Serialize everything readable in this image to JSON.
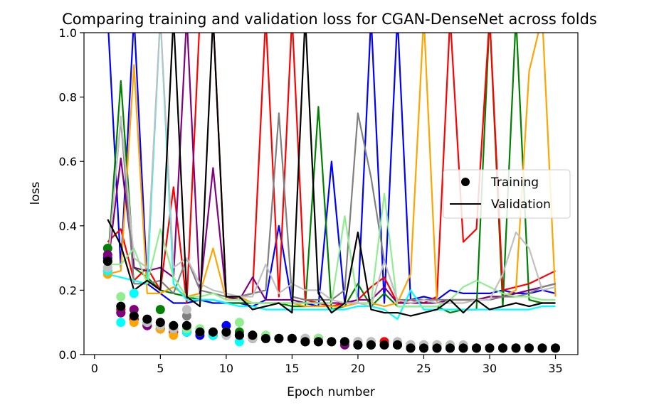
{
  "chart_data": {
    "type": "line",
    "title": "Comparing training and validation loss for CGAN-DenseNet across folds",
    "xlabel": "Epoch number",
    "ylabel": "loss",
    "xlim": [
      -0.8,
      36.7
    ],
    "ylim": [
      0,
      1.0
    ],
    "xticks": [
      0,
      5,
      10,
      15,
      20,
      25,
      30,
      35
    ],
    "yticks": [
      0.0,
      0.2,
      0.4,
      0.6,
      0.8,
      1.0
    ],
    "grid": false,
    "legend": {
      "placement": "center-right",
      "entries": [
        {
          "label": "Training",
          "marker": "point",
          "color": "#000000"
        },
        {
          "label": "Validation",
          "marker": "line",
          "color": "#000000"
        }
      ]
    },
    "x": [
      1,
      2,
      3,
      4,
      5,
      6,
      7,
      8,
      9,
      10,
      11,
      12,
      13,
      14,
      15,
      16,
      17,
      18,
      19,
      20,
      21,
      22,
      23,
      24,
      25,
      26,
      27,
      28,
      29,
      30,
      31,
      32,
      33,
      34,
      35
    ],
    "series": [
      {
        "color": "#0000ff",
        "training": [
          0.3,
          0.13,
          0.11,
          0.09,
          0.08,
          0.07,
          0.07,
          0.06,
          0.06,
          0.09,
          0.06,
          0.05,
          0.05,
          0.05,
          0.05,
          0.04,
          0.04,
          0.04,
          0.04,
          0.03,
          0.03,
          0.03,
          0.03,
          0.03,
          0.02,
          0.02,
          0.02,
          0.02,
          0.02,
          0.02,
          0.02,
          0.02,
          0.02,
          0.02,
          0.02
        ],
        "validation": [
          1.05,
          0.27,
          1.05,
          0.22,
          0.19,
          0.16,
          0.16,
          0.17,
          0.16,
          0.16,
          0.16,
          0.15,
          0.17,
          0.4,
          0.16,
          0.16,
          0.15,
          0.6,
          0.16,
          0.16,
          1.05,
          0.16,
          1.05,
          0.17,
          0.18,
          0.17,
          0.2,
          0.19,
          0.19,
          0.19,
          0.2,
          0.19,
          0.19,
          0.2,
          0.19
        ]
      },
      {
        "color": "#008000",
        "training": [
          0.33,
          0.14,
          0.11,
          0.1,
          0.14,
          0.08,
          0.08,
          0.07,
          0.06,
          0.07,
          0.07,
          0.06,
          0.05,
          0.05,
          0.05,
          0.05,
          0.05,
          0.04,
          0.04,
          0.03,
          0.03,
          0.03,
          0.03,
          0.03,
          0.03,
          0.03,
          0.02,
          0.02,
          0.02,
          0.02,
          0.02,
          0.02,
          0.02,
          0.02,
          0.02
        ],
        "validation": [
          0.28,
          0.85,
          0.27,
          0.24,
          0.2,
          0.19,
          0.18,
          0.17,
          0.17,
          0.16,
          0.16,
          0.16,
          0.16,
          0.16,
          0.15,
          0.15,
          0.77,
          0.14,
          0.15,
          0.22,
          0.15,
          0.19,
          0.15,
          0.15,
          0.15,
          0.15,
          0.13,
          0.14,
          0.14,
          1.05,
          0.15,
          1.05,
          0.17,
          0.16,
          0.16
        ]
      },
      {
        "color": "#ff0000",
        "training": [
          0.26,
          0.14,
          0.11,
          0.09,
          0.08,
          0.07,
          0.07,
          0.07,
          0.07,
          0.07,
          0.06,
          0.06,
          0.05,
          0.05,
          0.05,
          0.05,
          0.05,
          0.04,
          0.04,
          0.04,
          0.04,
          0.04,
          0.03,
          0.03,
          0.03,
          0.03,
          0.02,
          0.02,
          0.02,
          0.02,
          0.02,
          0.02,
          0.02,
          0.02,
          0.02
        ],
        "validation": [
          0.35,
          0.39,
          0.23,
          0.27,
          0.2,
          0.52,
          0.16,
          1.05,
          1.05,
          0.18,
          0.18,
          0.19,
          1.05,
          0.18,
          1.05,
          0.17,
          0.16,
          0.15,
          0.16,
          0.17,
          0.21,
          0.24,
          0.16,
          0.17,
          0.16,
          0.18,
          1.05,
          0.35,
          0.39,
          1.05,
          0.2,
          0.21,
          0.22,
          0.24,
          0.26
        ]
      },
      {
        "color": "#ffa500",
        "training": [
          0.25,
          0.13,
          0.1,
          0.09,
          0.08,
          0.06,
          0.08,
          0.07,
          0.06,
          0.07,
          0.06,
          0.05,
          0.05,
          0.05,
          0.05,
          0.04,
          0.04,
          0.04,
          0.04,
          0.03,
          0.03,
          0.03,
          0.03,
          0.03,
          0.03,
          0.02,
          0.02,
          0.02,
          0.02,
          0.02,
          0.02,
          0.02,
          0.02,
          0.02,
          0.02
        ],
        "validation": [
          0.25,
          0.26,
          0.9,
          0.19,
          0.19,
          0.21,
          0.18,
          0.19,
          0.33,
          0.17,
          0.18,
          0.16,
          0.16,
          0.16,
          0.16,
          0.15,
          0.15,
          0.15,
          0.15,
          0.16,
          0.16,
          0.15,
          0.16,
          0.25,
          1.05,
          0.16,
          0.17,
          0.17,
          0.17,
          0.18,
          0.18,
          0.2,
          0.88,
          1.05,
          0.18
        ]
      },
      {
        "color": "#800080",
        "training": [
          0.31,
          0.13,
          0.14,
          0.09,
          0.09,
          0.08,
          0.07,
          0.07,
          0.06,
          0.06,
          0.06,
          0.05,
          0.05,
          0.05,
          0.05,
          0.04,
          0.04,
          0.04,
          0.03,
          0.03,
          0.03,
          0.03,
          0.03,
          0.02,
          0.02,
          0.02,
          0.02,
          0.02,
          0.02,
          0.02,
          0.02,
          0.02,
          0.02,
          0.02,
          0.02
        ],
        "validation": [
          0.27,
          0.61,
          0.27,
          0.26,
          0.27,
          0.24,
          1.05,
          0.19,
          0.58,
          0.18,
          0.17,
          0.24,
          0.17,
          0.17,
          0.17,
          0.16,
          0.16,
          0.16,
          0.16,
          0.17,
          0.17,
          0.21,
          0.16,
          0.16,
          0.16,
          0.16,
          0.17,
          0.17,
          0.17,
          0.18,
          0.18,
          0.19,
          0.2,
          0.21,
          0.22
        ]
      },
      {
        "color": "#808080",
        "training": [
          0.29,
          0.15,
          0.12,
          0.11,
          0.1,
          0.09,
          0.12,
          0.07,
          0.07,
          0.07,
          0.06,
          0.06,
          0.05,
          0.05,
          0.05,
          0.05,
          0.04,
          0.04,
          0.04,
          0.04,
          0.03,
          0.03,
          0.03,
          0.03,
          0.03,
          0.03,
          0.02,
          0.02,
          0.02,
          0.02,
          0.02,
          0.02,
          0.02,
          0.02,
          0.02
        ],
        "validation": [
          0.29,
          0.73,
          0.22,
          0.22,
          0.23,
          0.19,
          0.3,
          0.2,
          0.19,
          0.18,
          0.18,
          0.19,
          0.2,
          0.75,
          0.18,
          0.17,
          0.17,
          0.17,
          0.2,
          0.75,
          0.55,
          0.29,
          0.17,
          0.17,
          0.17,
          0.17,
          0.17,
          0.17,
          0.17,
          0.17,
          0.18,
          0.18,
          0.19,
          0.21,
          0.22
        ]
      },
      {
        "color": "#00ffff",
        "training": [
          0.26,
          0.1,
          0.19,
          0.1,
          0.09,
          0.08,
          0.07,
          0.07,
          0.06,
          0.06,
          0.04,
          0.06,
          0.05,
          0.05,
          0.05,
          0.04,
          0.04,
          0.04,
          0.04,
          0.03,
          0.03,
          0.03,
          0.03,
          0.03,
          0.03,
          0.02,
          0.02,
          0.02,
          0.02,
          0.02,
          0.02,
          0.02,
          0.02,
          0.02,
          0.02
        ],
        "validation": [
          0.25,
          0.24,
          0.23,
          0.22,
          1.05,
          0.22,
          0.17,
          0.17,
          0.17,
          0.16,
          0.15,
          0.15,
          0.14,
          0.14,
          0.14,
          0.14,
          0.14,
          0.14,
          0.14,
          0.15,
          0.15,
          0.14,
          0.11,
          0.2,
          0.14,
          0.14,
          0.14,
          0.14,
          0.14,
          0.14,
          0.14,
          0.14,
          0.14,
          0.15,
          0.15
        ]
      },
      {
        "color": "#90ee90",
        "training": [
          0.27,
          0.18,
          0.12,
          0.11,
          0.09,
          0.09,
          0.08,
          0.08,
          0.07,
          0.07,
          0.1,
          0.06,
          0.06,
          0.05,
          0.05,
          0.05,
          0.05,
          0.04,
          0.04,
          0.04,
          0.04,
          0.03,
          0.03,
          0.03,
          0.03,
          0.03,
          0.03,
          0.02,
          0.02,
          0.02,
          0.02,
          0.02,
          0.02,
          0.02,
          0.02
        ],
        "validation": [
          0.28,
          0.28,
          0.33,
          0.22,
          0.39,
          0.24,
          0.18,
          0.18,
          0.19,
          0.17,
          0.17,
          0.16,
          0.16,
          0.16,
          0.16,
          0.16,
          0.16,
          0.16,
          0.43,
          0.16,
          0.16,
          0.5,
          0.15,
          0.15,
          0.15,
          0.15,
          0.17,
          0.21,
          0.23,
          0.21,
          0.19,
          0.18,
          0.18,
          0.17,
          0.17
        ]
      },
      {
        "color": "#c0c0c0",
        "training": [
          0.27,
          0.15,
          0.12,
          0.1,
          0.09,
          0.08,
          0.14,
          0.07,
          0.07,
          0.06,
          0.06,
          0.05,
          0.05,
          0.05,
          0.05,
          0.05,
          0.04,
          0.04,
          0.04,
          0.04,
          0.04,
          0.03,
          0.04,
          0.03,
          0.03,
          0.03,
          0.03,
          0.03,
          0.02,
          0.02,
          0.02,
          0.02,
          0.02,
          0.02,
          0.02
        ],
        "validation": [
          0.27,
          0.74,
          0.3,
          0.27,
          1.05,
          0.27,
          0.3,
          0.22,
          0.2,
          0.19,
          0.18,
          0.18,
          0.28,
          0.19,
          0.22,
          0.2,
          0.2,
          0.17,
          0.16,
          0.16,
          0.15,
          0.29,
          0.17,
          0.16,
          0.17,
          0.16,
          0.16,
          0.16,
          0.17,
          0.17,
          0.25,
          0.38,
          0.33,
          0.2,
          0.21
        ]
      },
      {
        "color": "#000000",
        "training": [
          0.29,
          0.15,
          0.12,
          0.11,
          0.1,
          0.09,
          0.09,
          0.07,
          0.07,
          0.07,
          0.06,
          0.06,
          0.05,
          0.05,
          0.05,
          0.04,
          0.04,
          0.04,
          0.04,
          0.03,
          0.03,
          0.03,
          0.03,
          0.02,
          0.02,
          0.02,
          0.02,
          0.02,
          0.02,
          0.02,
          0.02,
          0.02,
          0.02,
          0.02,
          0.02
        ],
        "validation": [
          0.42,
          0.34,
          0.2,
          0.23,
          0.2,
          1.05,
          0.18,
          0.15,
          1.05,
          0.18,
          0.18,
          0.14,
          0.15,
          0.16,
          0.13,
          1.05,
          0.19,
          0.13,
          0.16,
          0.38,
          0.14,
          0.13,
          0.13,
          0.12,
          0.13,
          0.14,
          0.17,
          0.13,
          0.17,
          0.14,
          0.15,
          0.16,
          0.15,
          0.16,
          0.16
        ]
      }
    ]
  }
}
